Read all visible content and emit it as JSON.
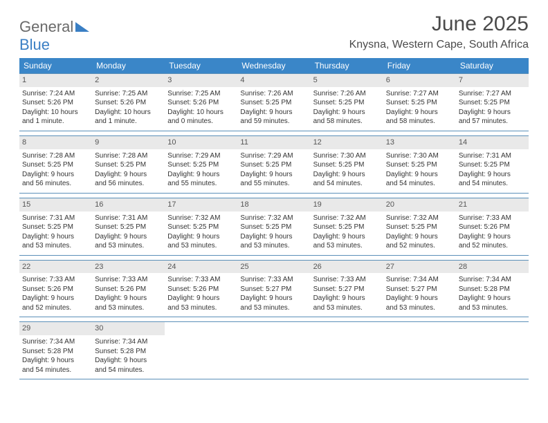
{
  "brand": {
    "part1": "General",
    "part2": "Blue"
  },
  "title": "June 2025",
  "location": "Knysna, Western Cape, South Africa",
  "colors": {
    "header_bg": "#3a86c8",
    "header_text": "#ffffff",
    "daynum_bg": "#e9e9e9",
    "rule": "#5a8fb8",
    "body_text": "#333333",
    "title_text": "#4a4a4a",
    "brand_gray": "#6a6a6a",
    "brand_blue": "#3a7fc4"
  },
  "typography": {
    "title_fontsize": 30,
    "location_fontsize": 16,
    "weekday_fontsize": 12,
    "cell_fontsize": 10
  },
  "weekdays": [
    "Sunday",
    "Monday",
    "Tuesday",
    "Wednesday",
    "Thursday",
    "Friday",
    "Saturday"
  ],
  "weeks": [
    [
      {
        "day": "1",
        "sunrise": "Sunrise: 7:24 AM",
        "sunset": "Sunset: 5:26 PM",
        "daylight1": "Daylight: 10 hours",
        "daylight2": "and 1 minute."
      },
      {
        "day": "2",
        "sunrise": "Sunrise: 7:25 AM",
        "sunset": "Sunset: 5:26 PM",
        "daylight1": "Daylight: 10 hours",
        "daylight2": "and 1 minute."
      },
      {
        "day": "3",
        "sunrise": "Sunrise: 7:25 AM",
        "sunset": "Sunset: 5:26 PM",
        "daylight1": "Daylight: 10 hours",
        "daylight2": "and 0 minutes."
      },
      {
        "day": "4",
        "sunrise": "Sunrise: 7:26 AM",
        "sunset": "Sunset: 5:25 PM",
        "daylight1": "Daylight: 9 hours",
        "daylight2": "and 59 minutes."
      },
      {
        "day": "5",
        "sunrise": "Sunrise: 7:26 AM",
        "sunset": "Sunset: 5:25 PM",
        "daylight1": "Daylight: 9 hours",
        "daylight2": "and 58 minutes."
      },
      {
        "day": "6",
        "sunrise": "Sunrise: 7:27 AM",
        "sunset": "Sunset: 5:25 PM",
        "daylight1": "Daylight: 9 hours",
        "daylight2": "and 58 minutes."
      },
      {
        "day": "7",
        "sunrise": "Sunrise: 7:27 AM",
        "sunset": "Sunset: 5:25 PM",
        "daylight1": "Daylight: 9 hours",
        "daylight2": "and 57 minutes."
      }
    ],
    [
      {
        "day": "8",
        "sunrise": "Sunrise: 7:28 AM",
        "sunset": "Sunset: 5:25 PM",
        "daylight1": "Daylight: 9 hours",
        "daylight2": "and 56 minutes."
      },
      {
        "day": "9",
        "sunrise": "Sunrise: 7:28 AM",
        "sunset": "Sunset: 5:25 PM",
        "daylight1": "Daylight: 9 hours",
        "daylight2": "and 56 minutes."
      },
      {
        "day": "10",
        "sunrise": "Sunrise: 7:29 AM",
        "sunset": "Sunset: 5:25 PM",
        "daylight1": "Daylight: 9 hours",
        "daylight2": "and 55 minutes."
      },
      {
        "day": "11",
        "sunrise": "Sunrise: 7:29 AM",
        "sunset": "Sunset: 5:25 PM",
        "daylight1": "Daylight: 9 hours",
        "daylight2": "and 55 minutes."
      },
      {
        "day": "12",
        "sunrise": "Sunrise: 7:30 AM",
        "sunset": "Sunset: 5:25 PM",
        "daylight1": "Daylight: 9 hours",
        "daylight2": "and 54 minutes."
      },
      {
        "day": "13",
        "sunrise": "Sunrise: 7:30 AM",
        "sunset": "Sunset: 5:25 PM",
        "daylight1": "Daylight: 9 hours",
        "daylight2": "and 54 minutes."
      },
      {
        "day": "14",
        "sunrise": "Sunrise: 7:31 AM",
        "sunset": "Sunset: 5:25 PM",
        "daylight1": "Daylight: 9 hours",
        "daylight2": "and 54 minutes."
      }
    ],
    [
      {
        "day": "15",
        "sunrise": "Sunrise: 7:31 AM",
        "sunset": "Sunset: 5:25 PM",
        "daylight1": "Daylight: 9 hours",
        "daylight2": "and 53 minutes."
      },
      {
        "day": "16",
        "sunrise": "Sunrise: 7:31 AM",
        "sunset": "Sunset: 5:25 PM",
        "daylight1": "Daylight: 9 hours",
        "daylight2": "and 53 minutes."
      },
      {
        "day": "17",
        "sunrise": "Sunrise: 7:32 AM",
        "sunset": "Sunset: 5:25 PM",
        "daylight1": "Daylight: 9 hours",
        "daylight2": "and 53 minutes."
      },
      {
        "day": "18",
        "sunrise": "Sunrise: 7:32 AM",
        "sunset": "Sunset: 5:25 PM",
        "daylight1": "Daylight: 9 hours",
        "daylight2": "and 53 minutes."
      },
      {
        "day": "19",
        "sunrise": "Sunrise: 7:32 AM",
        "sunset": "Sunset: 5:25 PM",
        "daylight1": "Daylight: 9 hours",
        "daylight2": "and 53 minutes."
      },
      {
        "day": "20",
        "sunrise": "Sunrise: 7:32 AM",
        "sunset": "Sunset: 5:25 PM",
        "daylight1": "Daylight: 9 hours",
        "daylight2": "and 52 minutes."
      },
      {
        "day": "21",
        "sunrise": "Sunrise: 7:33 AM",
        "sunset": "Sunset: 5:26 PM",
        "daylight1": "Daylight: 9 hours",
        "daylight2": "and 52 minutes."
      }
    ],
    [
      {
        "day": "22",
        "sunrise": "Sunrise: 7:33 AM",
        "sunset": "Sunset: 5:26 PM",
        "daylight1": "Daylight: 9 hours",
        "daylight2": "and 52 minutes."
      },
      {
        "day": "23",
        "sunrise": "Sunrise: 7:33 AM",
        "sunset": "Sunset: 5:26 PM",
        "daylight1": "Daylight: 9 hours",
        "daylight2": "and 53 minutes."
      },
      {
        "day": "24",
        "sunrise": "Sunrise: 7:33 AM",
        "sunset": "Sunset: 5:26 PM",
        "daylight1": "Daylight: 9 hours",
        "daylight2": "and 53 minutes."
      },
      {
        "day": "25",
        "sunrise": "Sunrise: 7:33 AM",
        "sunset": "Sunset: 5:27 PM",
        "daylight1": "Daylight: 9 hours",
        "daylight2": "and 53 minutes."
      },
      {
        "day": "26",
        "sunrise": "Sunrise: 7:33 AM",
        "sunset": "Sunset: 5:27 PM",
        "daylight1": "Daylight: 9 hours",
        "daylight2": "and 53 minutes."
      },
      {
        "day": "27",
        "sunrise": "Sunrise: 7:34 AM",
        "sunset": "Sunset: 5:27 PM",
        "daylight1": "Daylight: 9 hours",
        "daylight2": "and 53 minutes."
      },
      {
        "day": "28",
        "sunrise": "Sunrise: 7:34 AM",
        "sunset": "Sunset: 5:28 PM",
        "daylight1": "Daylight: 9 hours",
        "daylight2": "and 53 minutes."
      }
    ],
    [
      {
        "day": "29",
        "sunrise": "Sunrise: 7:34 AM",
        "sunset": "Sunset: 5:28 PM",
        "daylight1": "Daylight: 9 hours",
        "daylight2": "and 54 minutes."
      },
      {
        "day": "30",
        "sunrise": "Sunrise: 7:34 AM",
        "sunset": "Sunset: 5:28 PM",
        "daylight1": "Daylight: 9 hours",
        "daylight2": "and 54 minutes."
      },
      null,
      null,
      null,
      null,
      null
    ]
  ]
}
